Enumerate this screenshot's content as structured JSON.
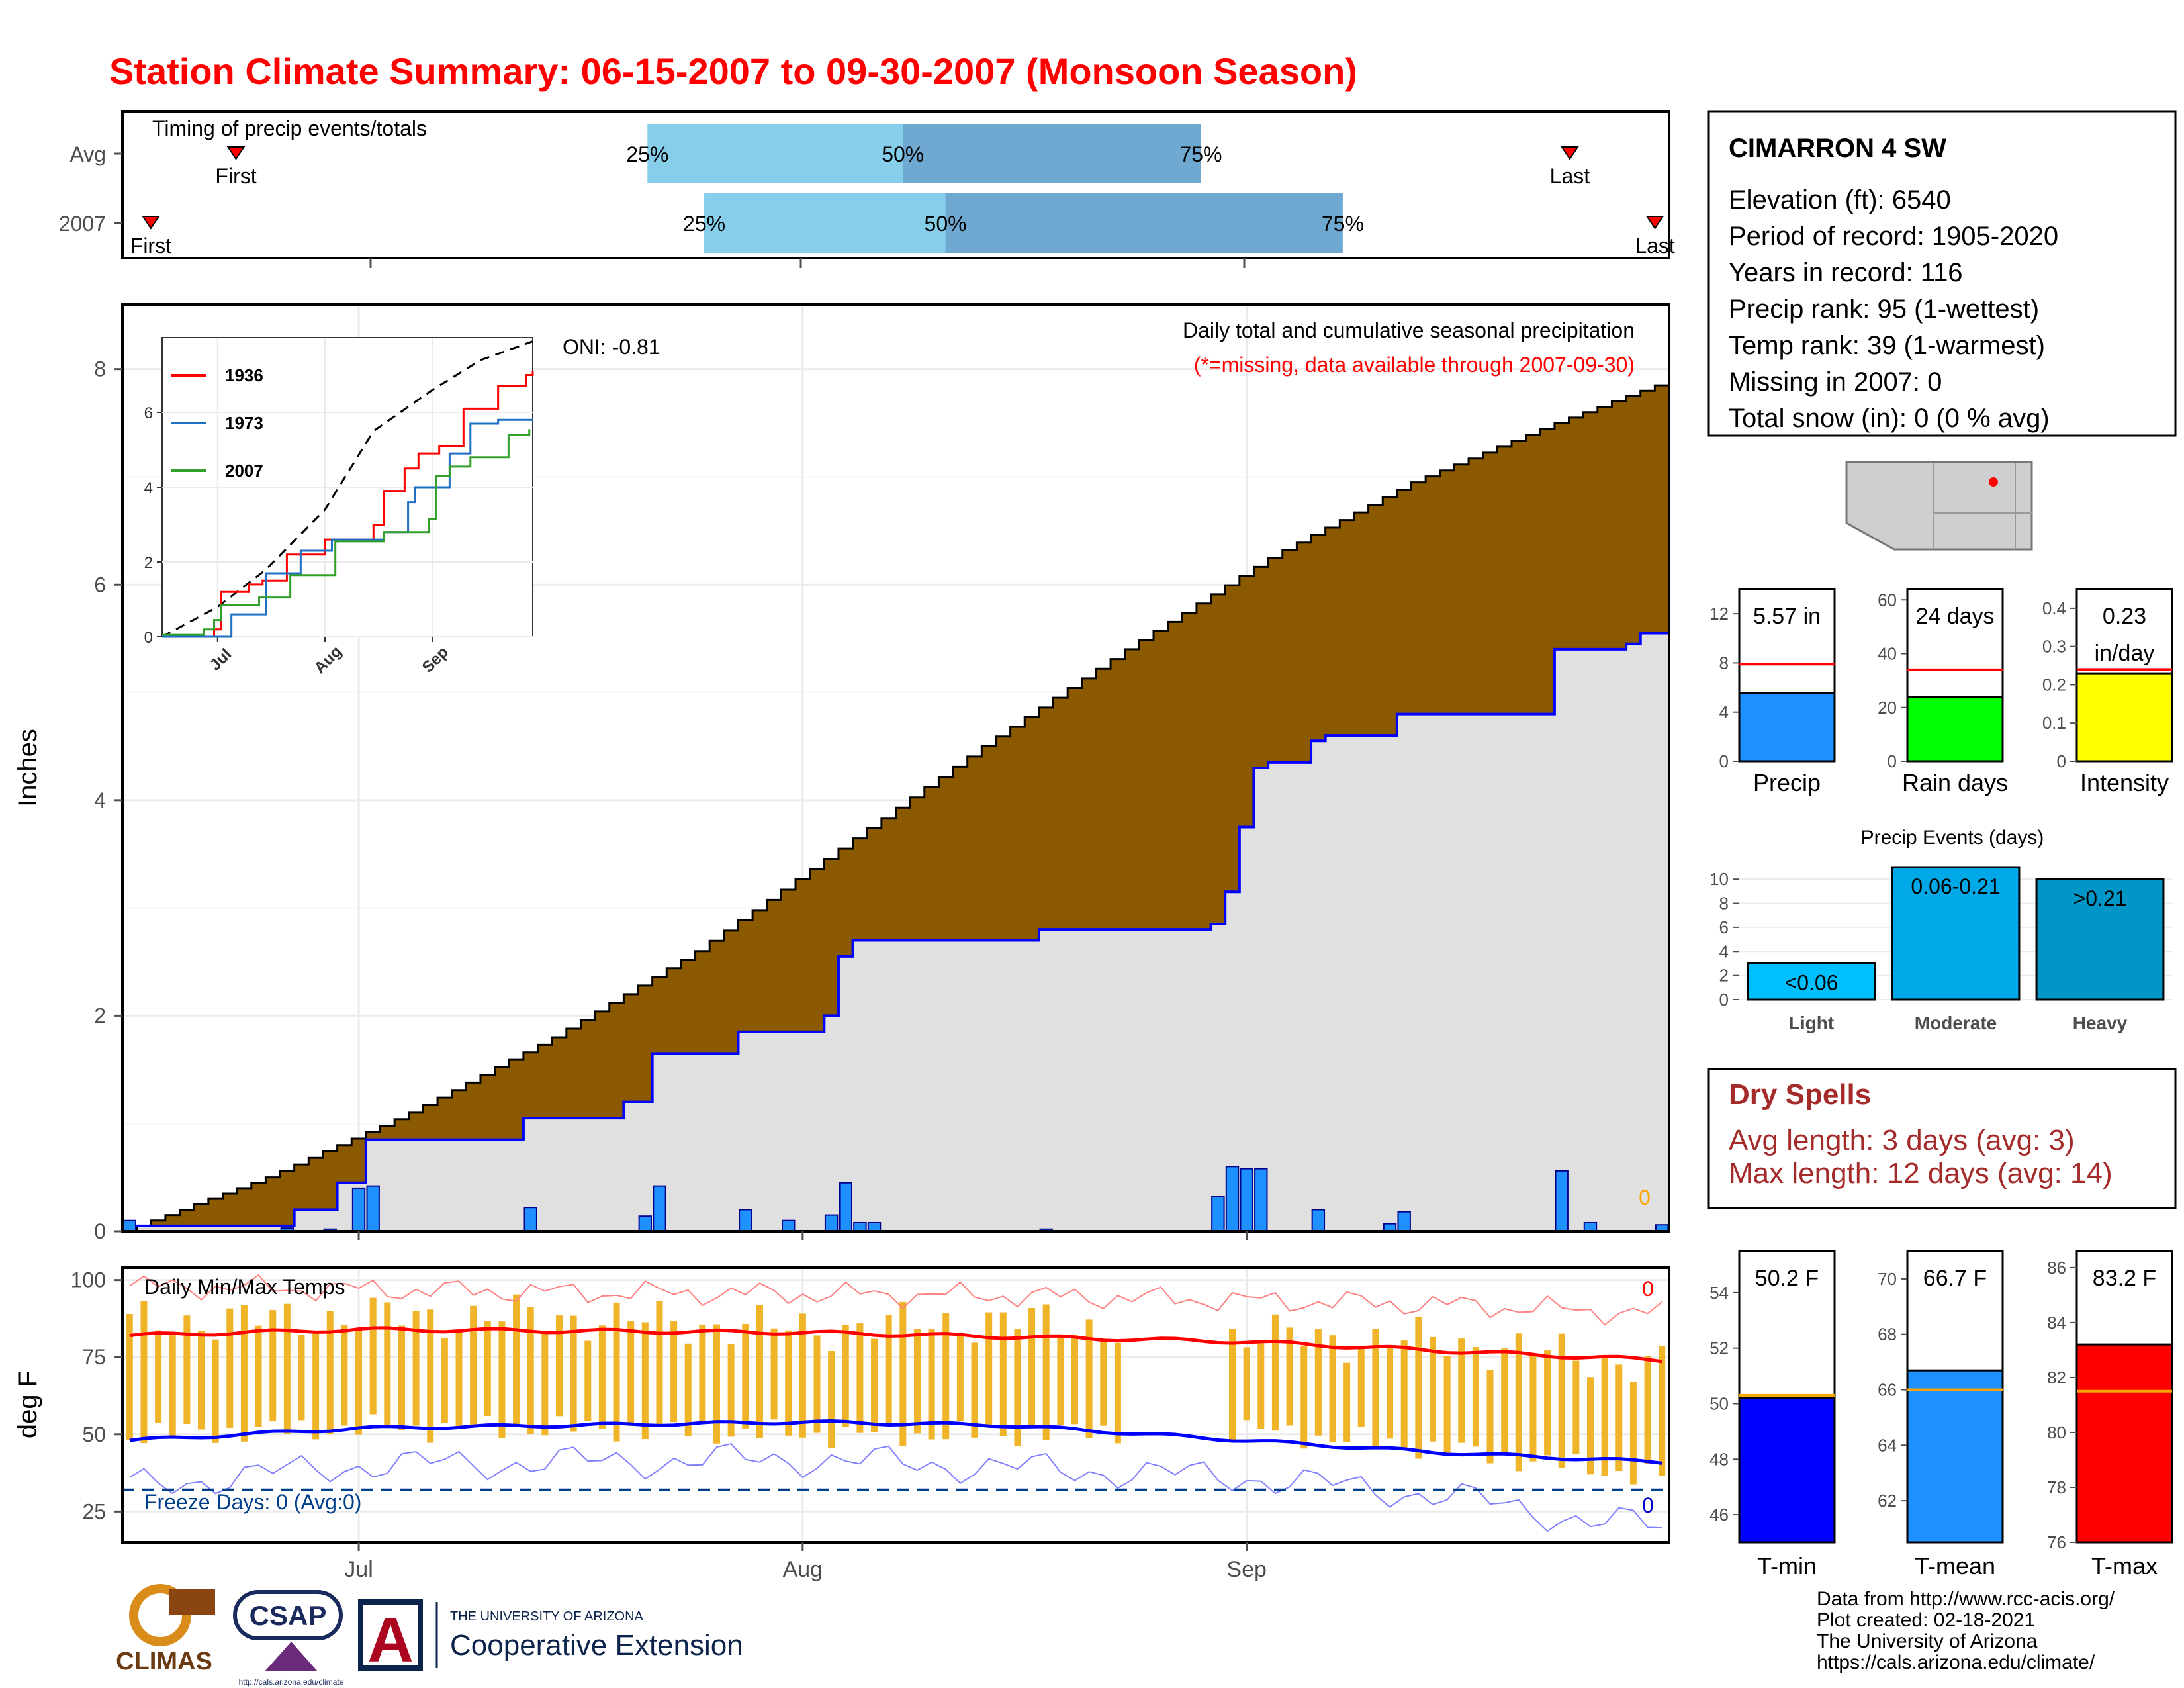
{
  "title": "Station Climate Summary: 06-15-2007 to 09-30-2007 (Monsoon Season)",
  "timing": {
    "caption": "Timing of precip events/totals",
    "rows": [
      {
        "label": "Avg",
        "first_day": 4,
        "q25": 18.5,
        "q50": 27.5,
        "q75": 38,
        "last_day": 51
      },
      {
        "label": "2007",
        "first_day": 1,
        "q25": 20.5,
        "q50": 29,
        "q75": 43,
        "last_day": 54
      }
    ],
    "quartile_labels": [
      "25%",
      "50%",
      "75%"
    ],
    "first_label": "First",
    "last_label": "Last",
    "colors": {
      "light": "#87ceeb",
      "dark": "#6fa8d0",
      "marker": "#ff0000"
    }
  },
  "station": {
    "name": "CIMARRON 4 SW",
    "lines": [
      "Elevation (ft): 6540",
      "Period of record: 1905-2020",
      "Years in record: 116",
      "Precip rank: 95 (1-wettest)",
      "Temp rank: 39 (1-warmest)",
      "Missing in 2007: 0",
      "Total snow (in): 0 (0 % avg)"
    ]
  },
  "main_chart": {
    "ylabel": "Inches",
    "caption": "Daily total and cumulative seasonal precipitation",
    "missing_note": "(*=missing, data available through 2007-09-30)",
    "oni": "ONI: -0.81",
    "missing_count": "0",
    "yticks": [
      0,
      2,
      4,
      6,
      8
    ],
    "xticks": [
      "Jul",
      "Aug",
      "Sep"
    ],
    "colors": {
      "avg_fill": "#8b5a00",
      "obs_fill": "#e0e0e0",
      "obs_line": "#0000ff",
      "bar": "#1e90ff",
      "bar_edge": "#00008b",
      "missing": "#ffa500"
    }
  },
  "chart_data": [
    {
      "type": "area",
      "name": "cumulative-precip",
      "x_start": "2007-06-15",
      "x_end": "2007-09-30",
      "ylim": [
        0,
        8.6
      ],
      "series": [
        {
          "name": "Avg",
          "x": [
            "2007-06-15",
            "2007-06-25",
            "2007-07-05",
            "2007-07-15",
            "2007-07-25",
            "2007-08-04",
            "2007-08-14",
            "2007-08-24",
            "2007-09-03",
            "2007-09-13",
            "2007-09-23",
            "2007-09-30"
          ],
          "values": [
            0.0,
            0.5,
            1.1,
            1.8,
            2.6,
            3.55,
            4.5,
            5.4,
            6.25,
            6.95,
            7.5,
            7.85
          ]
        },
        {
          "name": "2007",
          "x": [
            "2007-06-15",
            "2007-06-27",
            "2007-06-30",
            "2007-07-02",
            "2007-07-13",
            "2007-07-20",
            "2007-07-22",
            "2007-07-28",
            "2007-08-03",
            "2007-08-04",
            "2007-08-05",
            "2007-08-18",
            "2007-08-30",
            "2007-08-31",
            "2007-09-01",
            "2007-09-02",
            "2007-09-03",
            "2007-09-06",
            "2007-09-07",
            "2007-09-12",
            "2007-09-23",
            "2007-09-28",
            "2007-09-29"
          ],
          "values": [
            0.05,
            0.2,
            0.45,
            0.85,
            1.05,
            1.2,
            1.65,
            1.85,
            2.0,
            2.55,
            2.7,
            2.8,
            2.85,
            3.15,
            3.75,
            4.3,
            4.35,
            4.55,
            4.6,
            4.8,
            5.4,
            5.45,
            5.55
          ]
        }
      ]
    },
    {
      "type": "bar",
      "name": "daily-precip",
      "x": [
        "2007-06-15",
        "2007-06-26",
        "2007-06-29",
        "2007-07-01",
        "2007-07-02",
        "2007-07-13",
        "2007-07-21",
        "2007-07-22",
        "2007-07-28",
        "2007-07-31",
        "2007-08-03",
        "2007-08-04",
        "2007-08-05",
        "2007-08-06",
        "2007-08-18",
        "2007-08-30",
        "2007-08-31",
        "2007-09-01",
        "2007-09-02",
        "2007-09-06",
        "2007-09-11",
        "2007-09-12",
        "2007-09-23",
        "2007-09-25",
        "2007-09-30"
      ],
      "values": [
        0.1,
        0.03,
        0.02,
        0.4,
        0.42,
        0.22,
        0.14,
        0.42,
        0.2,
        0.1,
        0.15,
        0.45,
        0.08,
        0.08,
        0.02,
        0.32,
        0.6,
        0.58,
        0.58,
        0.2,
        0.07,
        0.18,
        0.56,
        0.08,
        0.06
      ]
    },
    {
      "type": "line",
      "name": "inset-cumulative",
      "ylim": [
        0,
        8.0
      ],
      "xticks": [
        "Jul",
        "Aug",
        "Sep"
      ],
      "yticks": [
        0,
        2,
        4,
        6
      ],
      "series": [
        {
          "name": "Average",
          "style": "dashed",
          "color": "#000000",
          "x": [
            "2007-06-15",
            "2007-07-01",
            "2007-07-15",
            "2007-08-01",
            "2007-08-15",
            "2007-09-01",
            "2007-09-15",
            "2007-09-30"
          ],
          "values": [
            0,
            0.8,
            1.8,
            3.4,
            5.5,
            6.6,
            7.4,
            7.9
          ]
        },
        {
          "name": "1936",
          "color": "#ff0000",
          "x": [
            "2007-06-15",
            "2007-06-30",
            "2007-07-02",
            "2007-07-10",
            "2007-07-14",
            "2007-07-21",
            "2007-08-01",
            "2007-08-15",
            "2007-08-18",
            "2007-08-24",
            "2007-08-28",
            "2007-09-03",
            "2007-09-10",
            "2007-09-20",
            "2007-09-28",
            "2007-09-30"
          ],
          "values": [
            0,
            0.2,
            1.2,
            1.4,
            1.5,
            2.2,
            2.6,
            3.0,
            3.9,
            4.5,
            4.9,
            5.1,
            6.1,
            6.7,
            7.0,
            7.1
          ]
        },
        {
          "name": "1973",
          "color": "#1f6fc5",
          "x": [
            "2007-06-15",
            "2007-07-05",
            "2007-07-15",
            "2007-07-25",
            "2007-08-03",
            "2007-08-18",
            "2007-08-25",
            "2007-08-27",
            "2007-09-06",
            "2007-09-12",
            "2007-09-20",
            "2007-09-30"
          ],
          "values": [
            0,
            0.6,
            1.7,
            2.3,
            2.6,
            2.8,
            3.6,
            4.0,
            4.9,
            5.7,
            5.8,
            5.8
          ]
        },
        {
          "name": "2007",
          "color": "#33a02c",
          "x": [
            "2007-06-15",
            "2007-06-27",
            "2007-06-30",
            "2007-07-02",
            "2007-07-13",
            "2007-07-22",
            "2007-08-04",
            "2007-08-18",
            "2007-08-31",
            "2007-09-02",
            "2007-09-06",
            "2007-09-12",
            "2007-09-23",
            "2007-09-29"
          ],
          "values": [
            0.05,
            0.2,
            0.45,
            0.85,
            1.05,
            1.65,
            2.55,
            2.8,
            3.15,
            4.3,
            4.55,
            4.8,
            5.4,
            5.55
          ]
        }
      ]
    },
    {
      "type": "line",
      "name": "daily-temps",
      "ylabel": "deg F",
      "ylim": [
        15,
        104
      ],
      "yticks": [
        25,
        50,
        75,
        100
      ],
      "freeze_line": 32,
      "avg_max": {
        "x": [
          "2007-06-15",
          "2007-07-01",
          "2007-08-01",
          "2007-09-01",
          "2007-09-15",
          "2007-09-30"
        ],
        "values": [
          82,
          84,
          83,
          80,
          77,
          74
        ]
      },
      "avg_min": {
        "x": [
          "2007-06-15",
          "2007-07-01",
          "2007-08-01",
          "2007-08-15",
          "2007-09-01",
          "2007-09-15",
          "2007-09-30"
        ],
        "values": [
          48,
          52,
          54,
          53,
          48,
          44,
          41
        ]
      },
      "daily_range_2007": {
        "x": [
          "2007-06-15",
          "2007-07-01",
          "2007-07-15",
          "2007-08-01",
          "2007-08-15",
          "2007-08-31",
          "2007-09-15",
          "2007-09-30"
        ],
        "max": [
          86,
          88,
          88,
          84,
          87,
          82,
          80,
          72
        ],
        "min": [
          50,
          52,
          52,
          50,
          50,
          52,
          45,
          36
        ]
      },
      "gap_2007": [
        "2007-08-24",
        "2007-08-30"
      ],
      "record_high": {
        "x": [
          "2007-06-15",
          "2007-07-15",
          "2007-08-15",
          "2007-09-15",
          "2007-09-30"
        ],
        "values": [
          98,
          96,
          95,
          92,
          89
        ]
      },
      "record_low": {
        "x": [
          "2007-06-15",
          "2007-07-01",
          "2007-08-01",
          "2007-09-01",
          "2007-09-15",
          "2007-09-25",
          "2007-09-30"
        ],
        "values": [
          33,
          40,
          42,
          36,
          30,
          22,
          20
        ]
      },
      "colors": {
        "bars": "#f0b429",
        "avg_max": "#ff0000",
        "avg_min": "#0000ff",
        "rec_high": "#ff8080",
        "rec_low": "#8080ff",
        "freeze": "#003f8c"
      }
    },
    {
      "type": "bar",
      "name": "precip-summary",
      "panels": [
        {
          "label": "Precip",
          "value": 5.57,
          "avg": 7.9,
          "ylim": [
            0,
            14
          ],
          "yticks": [
            0,
            4,
            8,
            12
          ],
          "color": "#1e90ff"
        },
        {
          "label": "Rain days",
          "value": 24,
          "avg": 34,
          "ylim": [
            0,
            64
          ],
          "yticks": [
            0,
            20,
            40,
            60
          ],
          "color": "#00ff00"
        },
        {
          "label": "Intensity",
          "value": 0.23,
          "avg": 0.24,
          "ylim": [
            0,
            0.45
          ],
          "yticks": [
            0.0,
            0.1,
            0.2,
            0.3,
            0.4
          ],
          "color": "#ffff00"
        }
      ]
    },
    {
      "type": "bar",
      "name": "precip-events",
      "title": "Precip Events (days)",
      "categories": [
        "Light",
        "Moderate",
        "Heavy"
      ],
      "values": [
        3,
        11,
        10
      ],
      "bar_labels": [
        "<0.06",
        "0.06-0.21",
        ">0.21"
      ],
      "ylim": [
        0,
        11
      ],
      "yticks": [
        0,
        2,
        4,
        6,
        8,
        10
      ],
      "colors": [
        "#00bfff",
        "#00a8e8",
        "#0096c7"
      ]
    },
    {
      "type": "bar",
      "name": "temp-summary",
      "panels": [
        {
          "label": "T-min",
          "value": 50.2,
          "avg": 50.3,
          "ylim": [
            45,
            55.5
          ],
          "yticks": [
            46,
            48,
            50,
            52,
            54
          ],
          "color": "#0000ff"
        },
        {
          "label": "T-mean",
          "value": 66.7,
          "avg": 66.0,
          "ylim": [
            60.5,
            71
          ],
          "yticks": [
            62,
            64,
            66,
            68,
            70
          ],
          "color": "#1e90ff"
        },
        {
          "label": "T-max",
          "value": 83.2,
          "avg": 81.5,
          "ylim": [
            76,
            86.6
          ],
          "yticks": [
            76,
            78,
            80,
            82,
            84,
            86
          ],
          "color": "#ff0000"
        }
      ]
    }
  ],
  "precip_summary_labels": [
    "5.57 in",
    "24 days",
    "0.23",
    "in/day"
  ],
  "temp_summary_labels": [
    "50.2 F",
    "66.7 F",
    "83.2 F"
  ],
  "temps_panel": {
    "caption": "Daily Min/Max Temps",
    "freeze_text": "Freeze Days: 0 (Avg:0)",
    "missing_top": "0",
    "missing_bottom": "0",
    "xticks": [
      "Jul",
      "Aug",
      "Sep"
    ]
  },
  "dry_spells": {
    "title": "Dry Spells",
    "avg_line": "Avg length: 3 days (avg: 3)",
    "max_line": "Max length: 12 days (avg: 14)"
  },
  "map": {
    "marker_color": "#ff0000"
  },
  "footer": {
    "lines": [
      "Data from http://www.rcc-acis.org/",
      "Plot created: 02-18-2021",
      "The University of Arizona",
      "https://cals.arizona.edu/climate/"
    ],
    "logos": {
      "climas": "CLIMAS",
      "csap": "CSAP",
      "csap_url": "http://cals.arizona.edu/climate",
      "ua_top": "THE UNIVERSITY OF ARIZONA",
      "ua_bottom": "Cooperative Extension"
    }
  }
}
